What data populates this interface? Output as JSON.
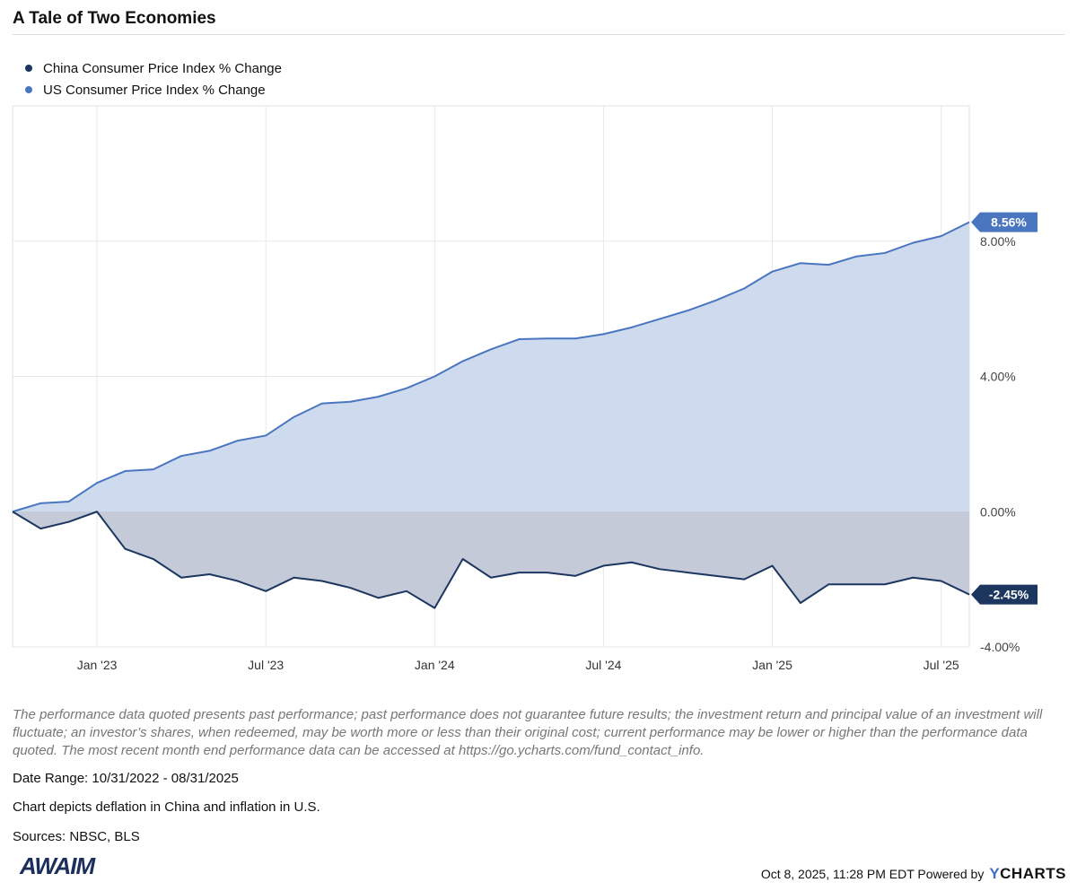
{
  "header": {
    "title": "A Tale of Two Economies"
  },
  "colors": {
    "china": "#1c3660",
    "us": "#4a76c0",
    "us_fill": "#cedaed",
    "china_fill": "#c4cad8"
  },
  "chart_data": {
    "type": "area",
    "x_start": "2022-10-31",
    "x_end": "2025-08-31",
    "x_tick_labels": [
      "Jan '23",
      "Jul '23",
      "Jan '24",
      "Jul '24",
      "Jan '25",
      "Jul '25"
    ],
    "y_ticks": [
      8,
      4,
      0,
      -4
    ],
    "y_tick_labels": [
      "8.00%",
      "4.00%",
      "0.00%",
      "-4.00%"
    ],
    "ylim": [
      -4,
      12
    ],
    "y_axis_side": "right",
    "grid": true,
    "legend_position": "top-left",
    "series": [
      {
        "name": "China Consumer Price Index % Change",
        "color": "#1c3660",
        "last_label": "-2.45%",
        "values": [
          0.0,
          -0.5,
          -0.3,
          0.0,
          -1.1,
          -1.4,
          -1.95,
          -1.85,
          -2.05,
          -2.35,
          -1.95,
          -2.05,
          -2.25,
          -2.55,
          -2.35,
          -2.85,
          -1.4,
          -1.95,
          -1.8,
          -1.8,
          -1.9,
          -1.6,
          -1.5,
          -1.7,
          -1.8,
          -1.9,
          -2.0,
          -1.6,
          -2.7,
          -2.15,
          -2.15,
          -2.15,
          -1.95,
          -2.05,
          -2.45
        ]
      },
      {
        "name": "US Consumer Price Index % Change",
        "color": "#4a76c0",
        "last_label": "8.56%",
        "values": [
          0.0,
          0.25,
          0.3,
          0.85,
          1.2,
          1.25,
          1.65,
          1.8,
          2.1,
          2.25,
          2.8,
          3.2,
          3.25,
          3.4,
          3.65,
          4.0,
          4.45,
          4.8,
          5.1,
          5.12,
          5.12,
          5.25,
          5.45,
          5.7,
          5.95,
          6.25,
          6.6,
          7.1,
          7.35,
          7.3,
          7.55,
          7.65,
          7.95,
          8.15,
          8.56
        ]
      }
    ]
  },
  "disclaimer": "The performance data quoted presents past performance; past performance does not guarantee future results; the investment return and principal value of an investment will fluctuate; an investor’s shares, when redeemed, may be worth more or less than their original cost; current performance may be lower or higher than the performance data quoted. The most recent month end performance data can be accessed at https://go.ycharts.com/fund_contact_info.",
  "info": {
    "date_range": "Date Range: 10/31/2022 - 08/31/2025",
    "description": "Chart depicts deflation in China and inflation in U.S.",
    "sources": "Sources: NBSC, BLS"
  },
  "logo_text": "AWAIM",
  "footer": {
    "timestamp": "Oct 8, 2025, 11:28 PM EDT Powered by",
    "brand_y": "Y",
    "brand_rest": "CHARTS"
  }
}
